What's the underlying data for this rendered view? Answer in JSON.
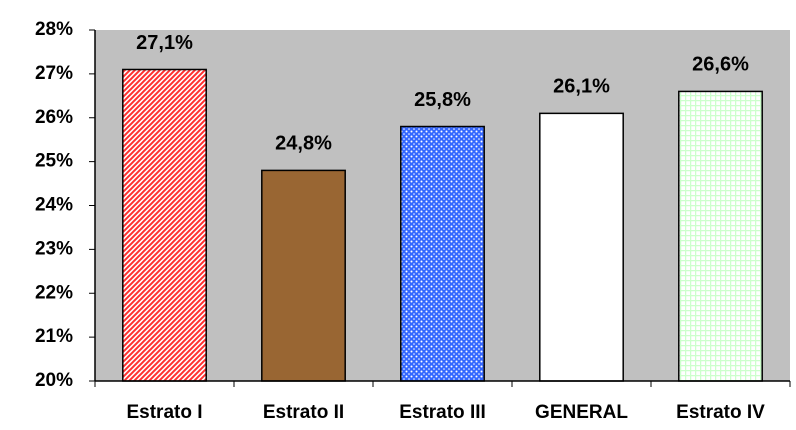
{
  "chart_data": {
    "type": "bar",
    "categories": [
      "Estrato I",
      "Estrato II",
      "Estrato III",
      "GENERAL",
      "Estrato IV"
    ],
    "values": [
      27.1,
      24.8,
      25.8,
      26.1,
      26.6
    ],
    "value_labels": [
      "27,1%",
      "24,8%",
      "25,8%",
      "26,1%",
      "26,6%"
    ],
    "colors": [
      "#ff3030",
      "#996633",
      "#3366ff",
      "#ffffff",
      "#ccffcc"
    ],
    "patterns": [
      "diagonal",
      "solid",
      "dots",
      "solid",
      "grid"
    ],
    "plot_background": "#c0c0c0",
    "ylim": [
      20,
      28
    ],
    "yticks": [
      {
        "value": 20,
        "label": "20%"
      },
      {
        "value": 21,
        "label": "21%"
      },
      {
        "value": 22,
        "label": "22%"
      },
      {
        "value": 23,
        "label": "23%"
      },
      {
        "value": 24,
        "label": "24%"
      },
      {
        "value": 25,
        "label": "25%"
      },
      {
        "value": 26,
        "label": "26%"
      },
      {
        "value": 27,
        "label": "27%"
      },
      {
        "value": 28,
        "label": "28%"
      }
    ],
    "grid": false
  }
}
